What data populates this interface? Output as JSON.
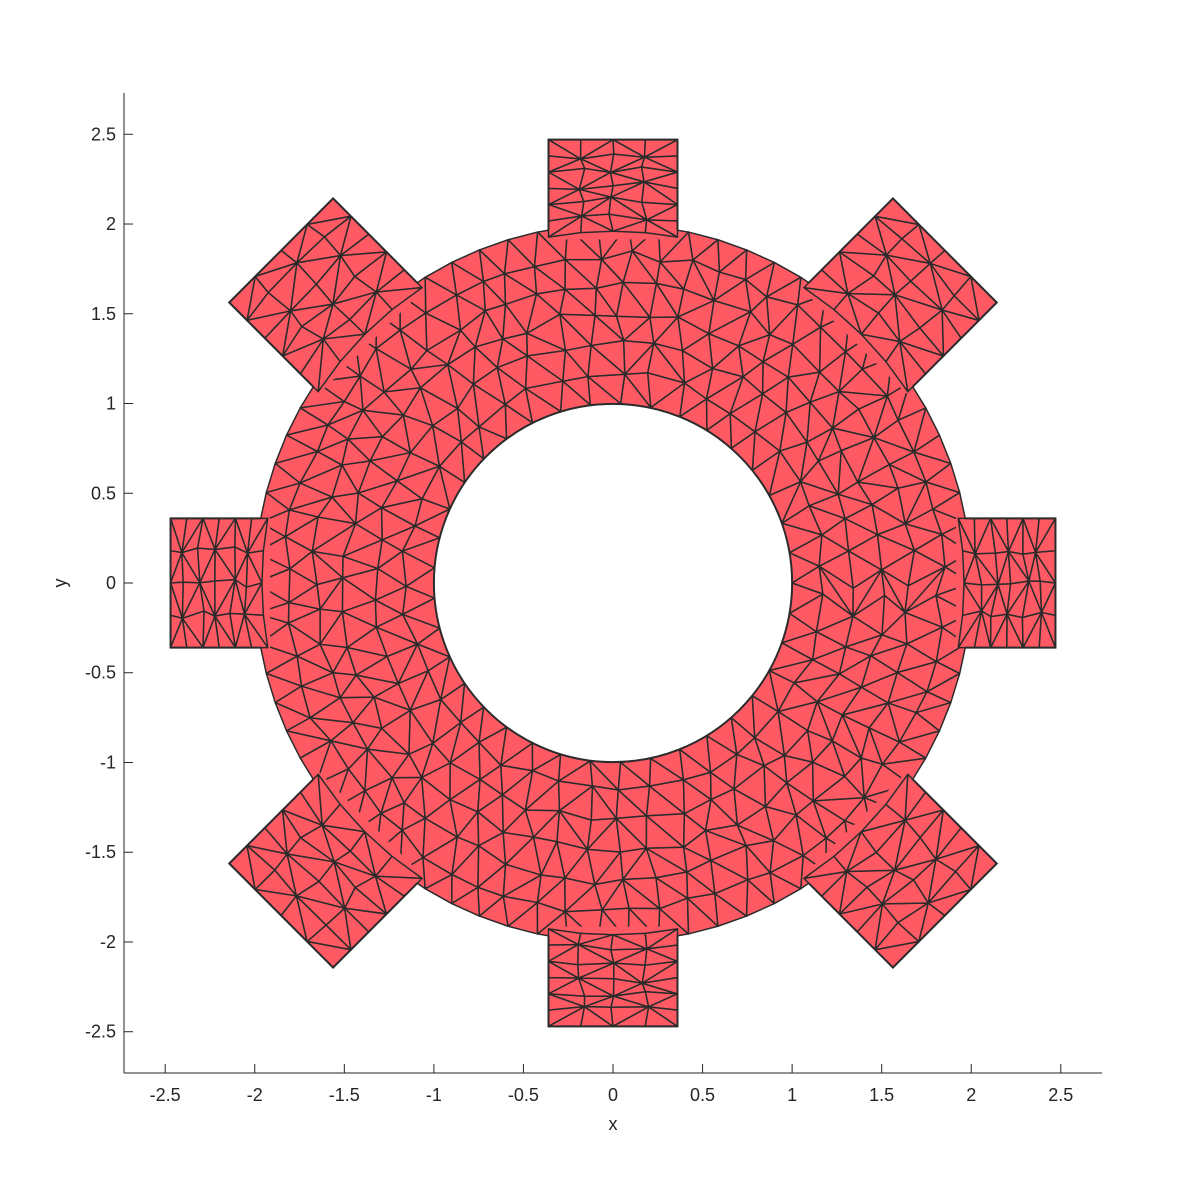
{
  "chart_data": {
    "type": "mesh",
    "title": "",
    "xlabel": "x",
    "ylabel": "y",
    "xlim": [
      -2.73,
      2.73
    ],
    "ylim": [
      -2.73,
      2.73
    ],
    "x_ticks": [
      -2.5,
      -2,
      -1.5,
      -1,
      -0.5,
      0,
      0.5,
      1,
      1.5,
      2,
      2.5
    ],
    "y_ticks": [
      -2.5,
      -2,
      -1.5,
      -1,
      -0.5,
      0,
      0.5,
      1,
      1.5,
      2,
      2.5
    ],
    "x_tick_labels": [
      "-2.5",
      "-2",
      "-1.5",
      "-1",
      "-0.5",
      "0",
      "0.5",
      "1",
      "1.5",
      "2",
      "2.5"
    ],
    "y_tick_labels": [
      "-2.5",
      "-2",
      "-1.5",
      "-1",
      "-0.5",
      "0",
      "0.5",
      "1",
      "1.5",
      "2",
      "2.5"
    ],
    "grid": false,
    "face_color": "#ff5a64",
    "edge_color": "#2b2b2b",
    "shape": {
      "description_free": true,
      "inner_radius": 1.0,
      "outer_radius": 2.0,
      "tooth_count": 8,
      "tooth_tip_radius": 2.47,
      "tooth_half_width": 0.36,
      "diagonal_teeth_rotated": true,
      "mesh_rings": 6,
      "element_type": "triangle"
    }
  }
}
